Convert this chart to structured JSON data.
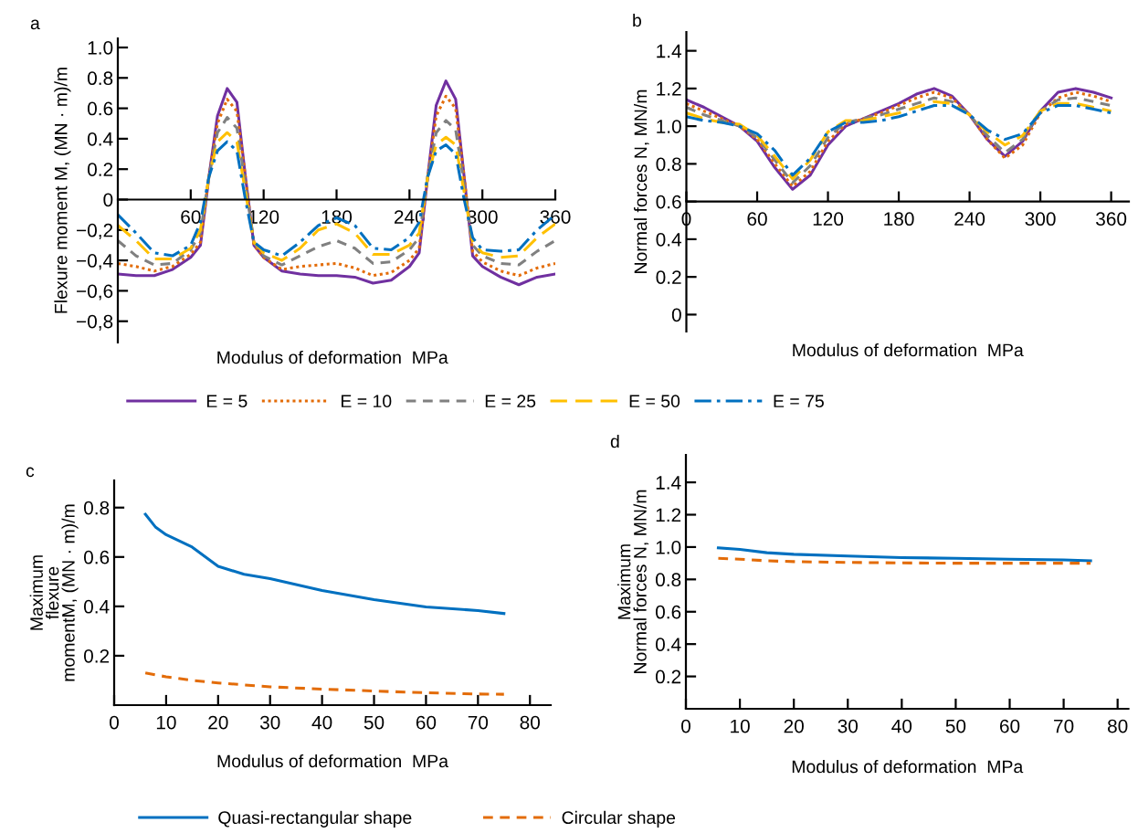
{
  "chart_data": [
    {
      "type": "line",
      "title": "a",
      "xlabel": "Modulus of deformation  MPa",
      "ylabel": "Flexure moment M, (MN · m)/m",
      "x": [
        0,
        15,
        30,
        45,
        60,
        68,
        75,
        82,
        90,
        98,
        105,
        112,
        120,
        135,
        150,
        165,
        180,
        195,
        210,
        225,
        240,
        248,
        255,
        262,
        270,
        278,
        285,
        292,
        300,
        315,
        330,
        345,
        360
      ],
      "series": [
        {
          "name": "E = 5",
          "color": "#7030a0",
          "line_style": "solid",
          "values": [
            -0.49,
            -0.5,
            -0.5,
            -0.46,
            -0.38,
            -0.3,
            0.15,
            0.55,
            0.73,
            0.64,
            0.15,
            -0.3,
            -0.38,
            -0.47,
            -0.49,
            -0.5,
            -0.5,
            -0.51,
            -0.55,
            -0.53,
            -0.44,
            -0.35,
            0.15,
            0.62,
            0.78,
            0.66,
            0.15,
            -0.37,
            -0.44,
            -0.51,
            -0.56,
            -0.51,
            -0.49
          ]
        },
        {
          "name": "E = 10",
          "color": "#e36c09",
          "line_style": "dotted",
          "values": [
            -0.42,
            -0.44,
            -0.47,
            -0.44,
            -0.36,
            -0.28,
            0.15,
            0.5,
            0.66,
            0.58,
            0.15,
            -0.3,
            -0.38,
            -0.46,
            -0.44,
            -0.43,
            -0.42,
            -0.45,
            -0.5,
            -0.48,
            -0.4,
            -0.32,
            0.15,
            0.55,
            0.68,
            0.6,
            0.15,
            -0.34,
            -0.41,
            -0.47,
            -0.5,
            -0.45,
            -0.42
          ]
        },
        {
          "name": "E = 25",
          "color": "#808080",
          "line_style": "dashed",
          "values": [
            -0.27,
            -0.37,
            -0.43,
            -0.42,
            -0.33,
            -0.22,
            0.15,
            0.44,
            0.54,
            0.47,
            0.1,
            -0.28,
            -0.37,
            -0.43,
            -0.37,
            -0.31,
            -0.27,
            -0.32,
            -0.42,
            -0.41,
            -0.33,
            -0.25,
            0.15,
            0.44,
            0.52,
            0.46,
            0.1,
            -0.3,
            -0.37,
            -0.42,
            -0.43,
            -0.34,
            -0.27
          ]
        },
        {
          "name": "E = 50",
          "color": "#ffc000",
          "line_style": "longdash",
          "values": [
            -0.17,
            -0.27,
            -0.39,
            -0.39,
            -0.32,
            -0.2,
            0.15,
            0.38,
            0.44,
            0.38,
            0.05,
            -0.28,
            -0.35,
            -0.4,
            -0.32,
            -0.2,
            -0.16,
            -0.22,
            -0.36,
            -0.36,
            -0.3,
            -0.22,
            0.15,
            0.36,
            0.41,
            0.36,
            0.05,
            -0.28,
            -0.35,
            -0.38,
            -0.37,
            -0.25,
            -0.16
          ]
        },
        {
          "name": "E = 75",
          "color": "#0070c0",
          "line_style": "dashdot",
          "values": [
            -0.1,
            -0.22,
            -0.35,
            -0.37,
            -0.3,
            -0.15,
            0.15,
            0.32,
            0.38,
            0.32,
            0.0,
            -0.28,
            -0.33,
            -0.37,
            -0.28,
            -0.17,
            -0.12,
            -0.17,
            -0.32,
            -0.33,
            -0.25,
            -0.15,
            0.15,
            0.32,
            0.36,
            0.3,
            0.0,
            -0.25,
            -0.33,
            -0.34,
            -0.33,
            -0.2,
            -0.1
          ]
        }
      ],
      "xlim": [
        0,
        360
      ],
      "xticks": [
        60,
        120,
        180,
        240,
        300,
        360
      ],
      "ylim": [
        -0.94,
        1.06
      ],
      "yticks": [
        {
          "value": -0.8,
          "label": "−0,8"
        },
        {
          "value": -0.6,
          "label": "−0,6"
        },
        {
          "value": -0.4,
          "label": "−0,4"
        },
        {
          "value": -0.2,
          "label": "−0,2"
        },
        0,
        0.2,
        0.4,
        0.6,
        0.8,
        {
          "value": 1.0,
          "label": "1.0"
        }
      ],
      "legend": "bottom",
      "grid": false
    },
    {
      "type": "line",
      "title": "b",
      "xlabel": "Modulus of deformation  MPa",
      "ylabel": "Normal forces N, MN/m",
      "x": [
        0,
        15,
        30,
        45,
        60,
        75,
        90,
        105,
        120,
        135,
        150,
        165,
        180,
        195,
        210,
        225,
        240,
        255,
        270,
        285,
        300,
        315,
        330,
        345,
        360
      ],
      "series": [
        {
          "color": "#7030a0",
          "line_style": "solid",
          "values": [
            1.14,
            1.1,
            1.05,
            1.0,
            0.92,
            0.78,
            0.665,
            0.74,
            0.9,
            1.0,
            1.04,
            1.08,
            1.12,
            1.17,
            1.2,
            1.16,
            1.06,
            0.93,
            0.84,
            0.92,
            1.08,
            1.18,
            1.2,
            1.18,
            1.15
          ]
        },
        {
          "color": "#e36c09",
          "line_style": "dotted",
          "values": [
            1.12,
            1.08,
            1.04,
            1.0,
            0.93,
            0.8,
            0.68,
            0.76,
            0.92,
            1.01,
            1.04,
            1.07,
            1.11,
            1.15,
            1.18,
            1.15,
            1.06,
            0.93,
            0.83,
            0.9,
            1.07,
            1.15,
            1.18,
            1.16,
            1.13
          ]
        },
        {
          "color": "#808080",
          "line_style": "dashed",
          "values": [
            1.1,
            1.06,
            1.03,
            1.0,
            0.94,
            0.82,
            0.7,
            0.79,
            0.94,
            1.02,
            1.04,
            1.06,
            1.09,
            1.12,
            1.15,
            1.13,
            1.06,
            0.95,
            0.86,
            0.93,
            1.08,
            1.14,
            1.15,
            1.13,
            1.11
          ]
        },
        {
          "color": "#ffc000",
          "line_style": "longdash",
          "values": [
            1.07,
            1.04,
            1.02,
            1.01,
            0.95,
            0.84,
            0.72,
            0.82,
            0.97,
            1.03,
            1.03,
            1.05,
            1.07,
            1.1,
            1.13,
            1.12,
            1.06,
            0.97,
            0.9,
            0.95,
            1.08,
            1.12,
            1.12,
            1.1,
            1.08
          ]
        },
        {
          "color": "#0070c0",
          "line_style": "dashdot",
          "values": [
            1.05,
            1.03,
            1.02,
            1.0,
            0.96,
            0.87,
            0.74,
            0.83,
            0.97,
            1.02,
            1.02,
            1.03,
            1.05,
            1.08,
            1.11,
            1.11,
            1.06,
            0.98,
            0.93,
            0.96,
            1.07,
            1.11,
            1.11,
            1.09,
            1.07
          ]
        }
      ],
      "xlim": [
        0,
        375
      ],
      "xticks": [
        0,
        60,
        120,
        180,
        240,
        300,
        360
      ],
      "ylim": [
        -0.09,
        1.5
      ],
      "yticks": [
        0,
        0.2,
        0.4,
        0.6,
        0.8,
        {
          "value": 1.0,
          "label": "1.0"
        },
        1.2,
        1.4
      ],
      "grid": false
    },
    {
      "type": "line",
      "title": "c",
      "xlabel": "Modulus of deformation  MPa",
      "ylabel": "Maximum\nflexure\nmomentM, (MN · m)/m",
      "x": [
        6,
        8,
        10,
        15,
        20,
        25,
        30,
        40,
        50,
        60,
        70,
        75
      ],
      "series": [
        {
          "name": "Quasi-rectangular shape",
          "color": "#0070c0",
          "line_style": "solid",
          "values": [
            0.773,
            0.72,
            0.69,
            0.64,
            0.562,
            0.53,
            0.512,
            0.464,
            0.427,
            0.398,
            0.383,
            0.371
          ]
        },
        {
          "name": "Circular shape",
          "color": "#e36c09",
          "line_style": "dashed",
          "values": [
            0.13,
            0.122,
            0.115,
            0.1,
            0.09,
            0.082,
            0.074,
            0.065,
            0.057,
            0.05,
            0.045,
            0.044
          ]
        }
      ],
      "xlim": [
        0,
        84
      ],
      "xticks": [
        0,
        10,
        20,
        30,
        40,
        50,
        60,
        70,
        80
      ],
      "ylim": [
        0,
        0.91
      ],
      "yticks": [
        0.2,
        0.4,
        0.6,
        0.8
      ],
      "legend": "bottom",
      "grid": false
    },
    {
      "type": "line",
      "title": "d",
      "xlabel": "Modulus of deformation  MPa",
      "ylabel": "Maximum\nNormal forces N, MN/m",
      "x": [
        6,
        10,
        15,
        20,
        30,
        40,
        50,
        60,
        70,
        75
      ],
      "series": [
        {
          "color": "#0070c0",
          "line_style": "solid",
          "values": [
            0.995,
            0.985,
            0.965,
            0.955,
            0.945,
            0.935,
            0.93,
            0.925,
            0.92,
            0.915
          ]
        },
        {
          "color": "#e36c09",
          "line_style": "dashed",
          "values": [
            0.93,
            0.925,
            0.915,
            0.91,
            0.905,
            0.902,
            0.9,
            0.9,
            0.9,
            0.9
          ]
        }
      ],
      "xlim": [
        0,
        82
      ],
      "xticks": [
        0,
        10,
        20,
        30,
        40,
        50,
        60,
        70,
        80
      ],
      "ylim": [
        0,
        1.57
      ],
      "yticks": [
        0.2,
        0.4,
        0.6,
        0.8,
        {
          "value": 1.0,
          "label": "1.0"
        },
        1.2,
        1.4
      ],
      "grid": false
    }
  ]
}
